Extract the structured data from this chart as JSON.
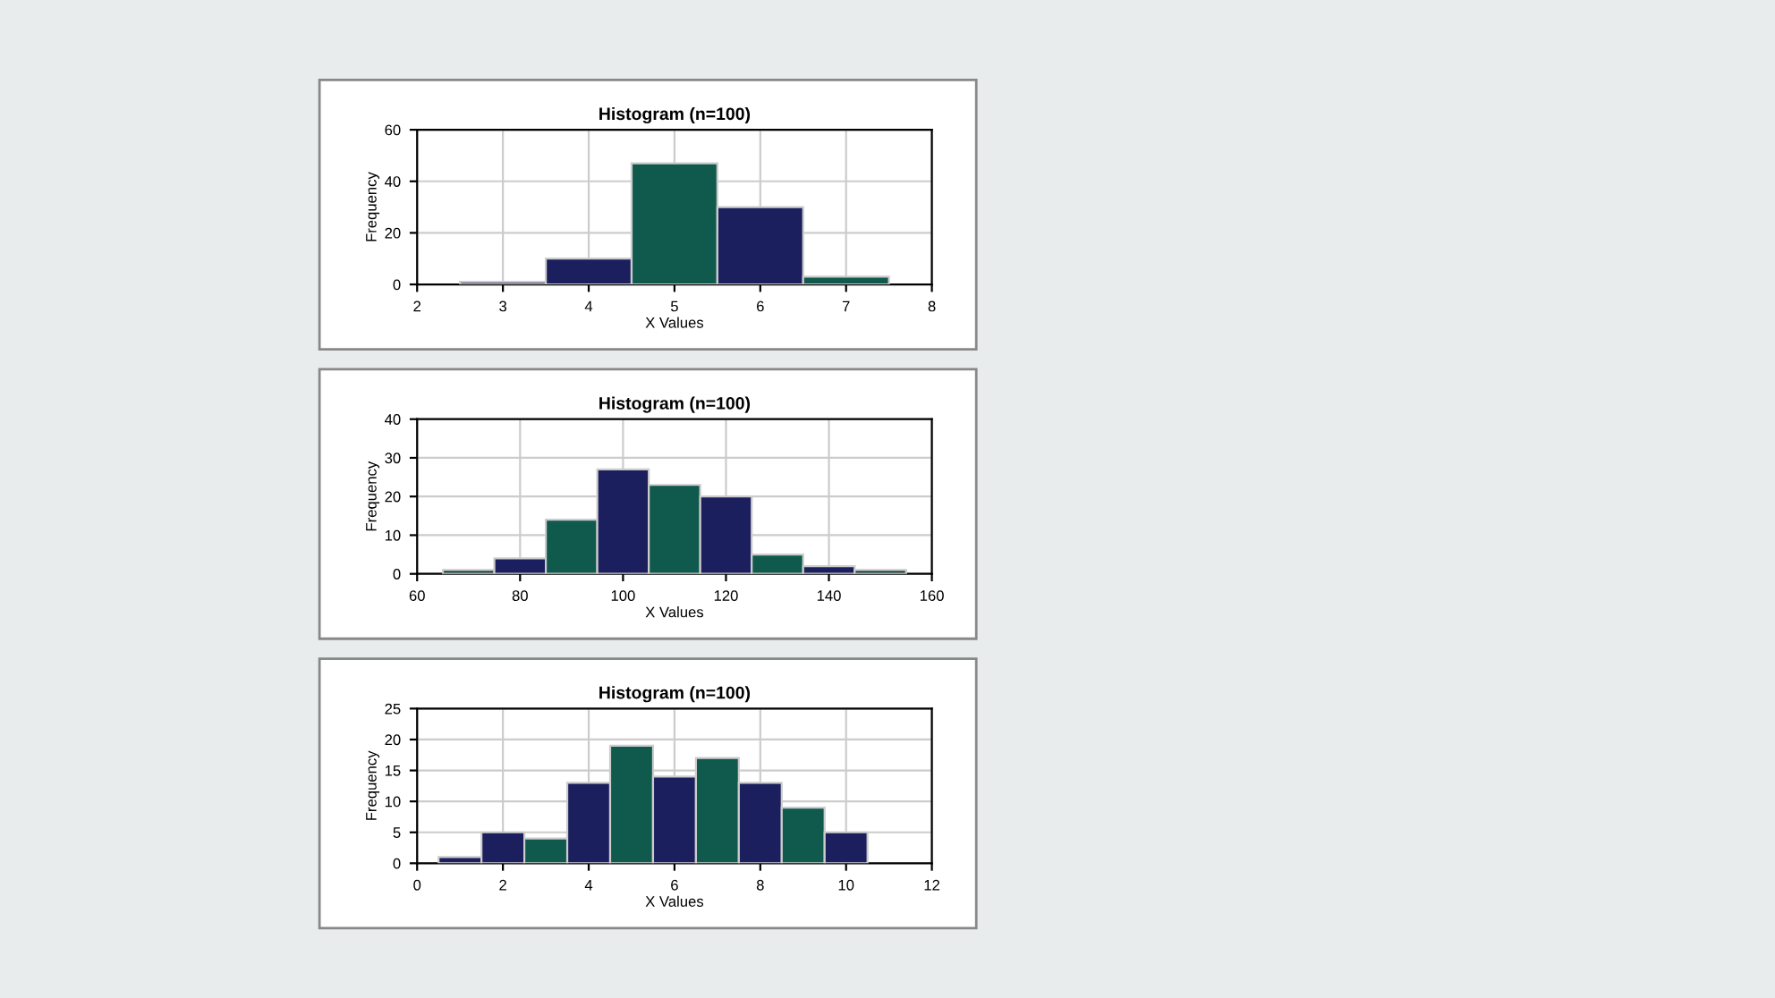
{
  "chart_data": [
    {
      "type": "histogram",
      "title": "Histogram (n=100)",
      "xlabel": "X Values",
      "ylabel": "Frequency",
      "bins": [
        2.5,
        3.5,
        4.5,
        5.5,
        6.5,
        7.5
      ],
      "values": [
        1,
        10,
        47,
        30,
        3
      ],
      "colors": [
        "#1b1f5e",
        "#1b1f5e",
        "#0f5a4c",
        "#1b1f5e",
        "#0f5a4c"
      ],
      "xlim": [
        2,
        8
      ],
      "xticks": [
        2,
        3,
        4,
        5,
        6,
        7,
        8
      ],
      "ylim": [
        0,
        60
      ],
      "yticks": [
        0,
        20,
        40,
        60
      ],
      "grid": true
    },
    {
      "type": "histogram",
      "title": "Histogram (n=100)",
      "xlabel": "X Values",
      "ylabel": "Frequency",
      "bins": [
        65,
        75,
        85,
        95,
        105,
        115,
        125,
        135,
        145,
        155
      ],
      "values": [
        1,
        4,
        14,
        27,
        23,
        20,
        5,
        2,
        1
      ],
      "colors": [
        "#0f3a34",
        "#1b1f5e",
        "#0f5a4c",
        "#1b1f5e",
        "#0f5a4c",
        "#1b1f5e",
        "#0f5a4c",
        "#1b1f5e",
        "#0f3a34"
      ],
      "xlim": [
        60,
        160
      ],
      "xticks": [
        60,
        80,
        100,
        120,
        140,
        160
      ],
      "ylim": [
        0,
        40
      ],
      "yticks": [
        0,
        10,
        20,
        30,
        40
      ],
      "grid": true
    },
    {
      "type": "histogram",
      "title": "Histogram (n=100)",
      "xlabel": "X Values",
      "ylabel": "Frequency",
      "bins": [
        0.5,
        1.5,
        2.5,
        3.5,
        4.5,
        5.5,
        6.5,
        7.5,
        8.5,
        9.5,
        10.5
      ],
      "values": [
        1,
        5,
        4,
        13,
        19,
        14,
        17,
        13,
        9,
        5
      ],
      "colors": [
        "#1b1f5e",
        "#1b1f5e",
        "#0f5a4c",
        "#1b1f5e",
        "#0f5a4c",
        "#1b1f5e",
        "#0f5a4c",
        "#1b1f5e",
        "#0f5a4c",
        "#1b1f5e"
      ],
      "xlim": [
        0,
        12
      ],
      "xticks": [
        0,
        2,
        4,
        6,
        8,
        10,
        12
      ],
      "ylim": [
        0,
        25
      ],
      "yticks": [
        0,
        5,
        10,
        15,
        20,
        25
      ],
      "grid": true
    }
  ]
}
